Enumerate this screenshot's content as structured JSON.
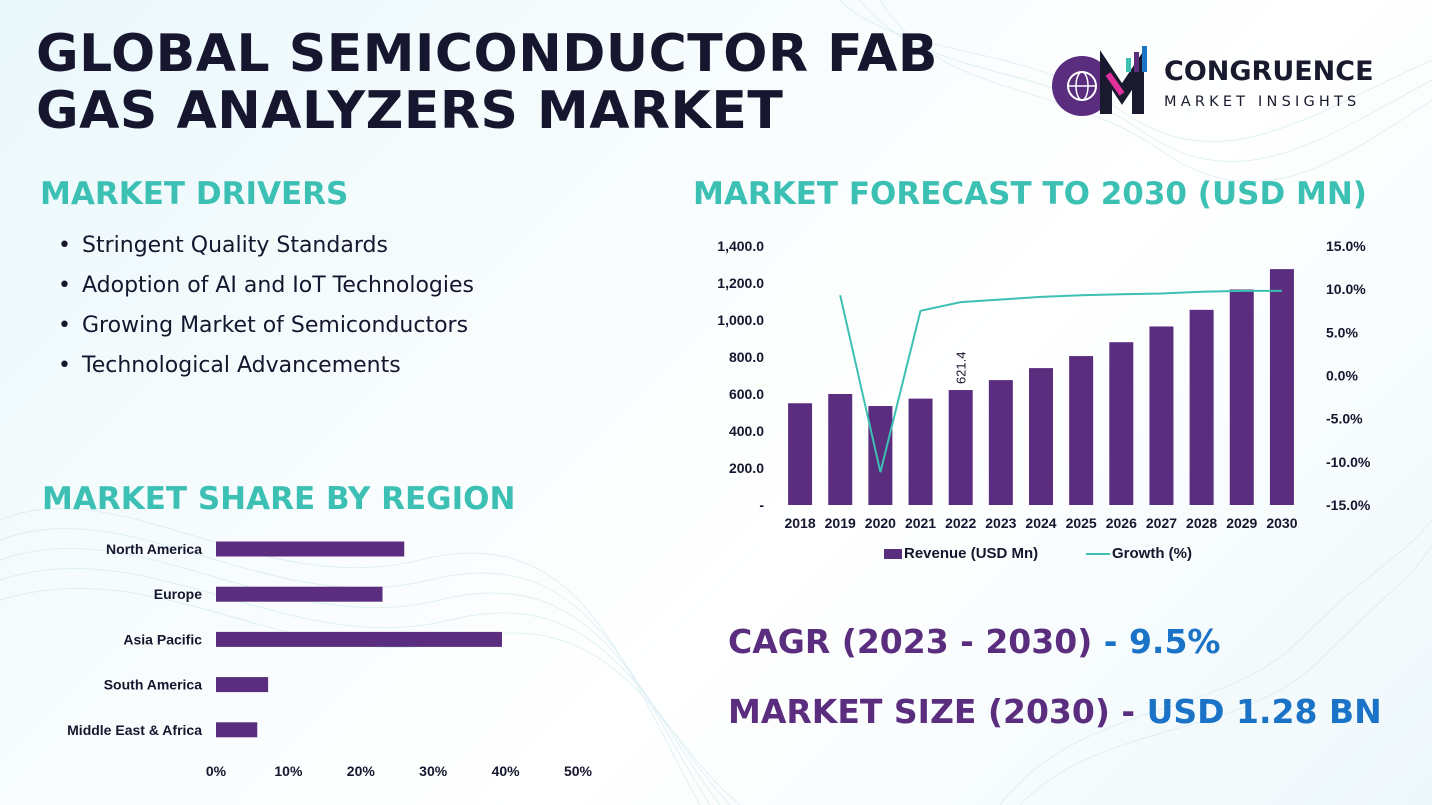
{
  "title": "GLOBAL SEMICONDUCTOR FAB GAS ANALYZERS MARKET",
  "logo": {
    "name": "CONGRUENCE",
    "subtitle": "MARKET INSIGHTS",
    "letters": "CM",
    "primary_color": "#5b2d7e",
    "accent_color": "#e0309c",
    "icon": "globe-bar-chart-logo-icon"
  },
  "drivers": {
    "title": "MARKET DRIVERS",
    "items": [
      "Stringent Quality Standards",
      "Adoption of AI and IoT Technologies",
      "Growing Market of Semiconductors",
      "Technological Advancements"
    ]
  },
  "forecast": {
    "title": "MARKET FORECAST TO 2030 (USD MN)"
  },
  "region": {
    "title": "MARKET SHARE BY REGION"
  },
  "stats": {
    "cagr_label": "CAGR (2023 - 2030)",
    "cagr_value": "- 9.5%",
    "size_label": "MARKET SIZE (2030) -",
    "size_value": "USD 1.28 BN"
  },
  "colors": {
    "bar": "#5b2d7e",
    "line": "#3cc0b4",
    "title": "#16162e",
    "section": "#3cc0b4",
    "stat_value": "#1a73c6"
  },
  "chart_data": [
    {
      "type": "bar",
      "categories": [
        "2018",
        "2019",
        "2020",
        "2021",
        "2022",
        "2023",
        "2024",
        "2025",
        "2026",
        "2027",
        "2028",
        "2029",
        "2030"
      ],
      "series": [
        {
          "name": "Revenue (USD Mn)",
          "type": "bar",
          "axis": "left",
          "values": [
            550,
            600,
            535,
            575,
            621.4,
            675,
            740,
            805,
            880,
            965,
            1055,
            1165,
            1275
          ]
        },
        {
          "name": "Growth (%)",
          "type": "line",
          "axis": "right",
          "values": [
            null,
            9.3,
            -11.2,
            7.5,
            8.5,
            8.8,
            9.1,
            9.3,
            9.4,
            9.5,
            9.7,
            9.8,
            9.8
          ]
        }
      ],
      "data_labels": [
        {
          "category": "2022",
          "text": "621.4"
        }
      ],
      "y_left": {
        "ylim": [
          0,
          1400
        ],
        "ticks": [
          0,
          200,
          400,
          600,
          800,
          1000,
          1200,
          1400
        ],
        "tick_labels": [
          "-",
          "200.0",
          "400.0",
          "600.0",
          "800.0",
          "1,000.0",
          "1,200.0",
          "1,400.0"
        ]
      },
      "y_right": {
        "ylim": [
          -15,
          15
        ],
        "ticks": [
          -15,
          -10,
          -5,
          0,
          5,
          10,
          15
        ],
        "tick_labels": [
          "-15.0%",
          "-10.0%",
          "-5.0%",
          "0.0%",
          "5.0%",
          "10.0%",
          "15.0%"
        ]
      },
      "legend": "bottom",
      "grid": false
    },
    {
      "type": "bar",
      "orientation": "horizontal",
      "categories": [
        "North America",
        "Europe",
        "Asia Pacific",
        "South America",
        "Middle East & Africa"
      ],
      "values": [
        26,
        23,
        39.5,
        7.2,
        5.7
      ],
      "x_ticks": [
        "0%",
        "10%",
        "20%",
        "30%",
        "40%",
        "50%"
      ],
      "xlim": [
        0,
        50
      ],
      "grid": false
    }
  ]
}
